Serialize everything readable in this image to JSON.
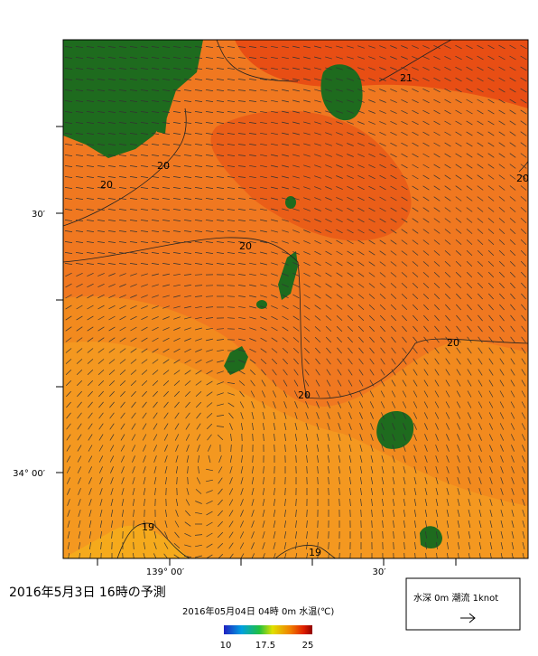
{
  "map": {
    "title": "2016年5月3日 16時の予測",
    "subtitle": "2016年05月04日 04時 0m 水温(℃)",
    "contour_labels": [
      "21",
      "20",
      "20",
      "20",
      "20",
      "20",
      "20",
      "19",
      "19"
    ],
    "lat_labels": [
      "30′",
      "34° 00′"
    ],
    "lon_labels": [
      "139° 00′",
      "30′"
    ],
    "colorbar_labels": [
      "10",
      "17.5",
      "25"
    ],
    "legend": "水深 0m 潮流 1knot"
  }
}
